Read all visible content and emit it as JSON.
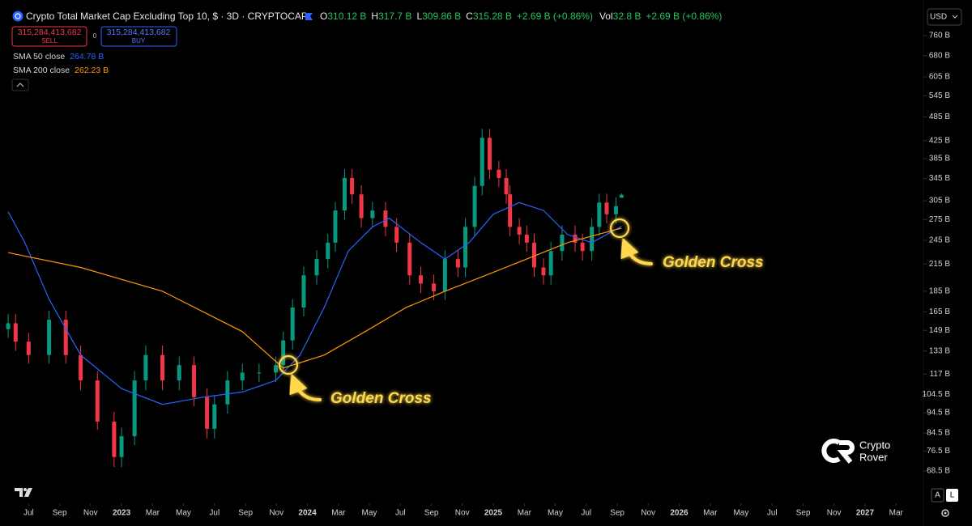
{
  "header": {
    "title": "Crypto Total Market Cap Excluding Top 10, $ · 3D · CRYPTOCAP",
    "ohlc": [
      {
        "key": "O",
        "value": "310.12 B"
      },
      {
        "key": "H",
        "value": "317.7 B"
      },
      {
        "key": "L",
        "value": "309.86 B"
      },
      {
        "key": "C",
        "value": "315.28 B"
      }
    ],
    "change": "+2.69 B (+0.86%)",
    "vol_key": "Vol",
    "vol": "32.8 B",
    "vol_change": "+2.69 B (+0.86%)"
  },
  "trade": {
    "sell_price": "315,284,413,682",
    "sell": "SELL",
    "spread": "0",
    "buy_price": "315,284,413,682",
    "buy": "BUY"
  },
  "currency": "USD",
  "scale_buttons": [
    "A",
    "L"
  ],
  "watermark": [
    "Crypto",
    "Rover"
  ],
  "chart_data": {
    "type": "candlestick",
    "log_scale": true,
    "up_color": "#089981",
    "down_color": "#f23645",
    "x": [
      2022.39,
      2022.43,
      2022.5,
      2022.61,
      2022.7,
      2022.78,
      2022.87,
      2022.96,
      2023.0,
      2023.07,
      2023.13,
      2023.22,
      2023.31,
      2023.39,
      2023.46,
      2023.5,
      2023.57,
      2023.65,
      2023.74,
      2023.83,
      2023.87,
      2023.92,
      2023.98,
      2024.05,
      2024.11,
      2024.15,
      2024.2,
      2024.24,
      2024.29,
      2024.35,
      2024.42,
      2024.48,
      2024.55,
      2024.61,
      2024.68,
      2024.74,
      2024.81,
      2024.85,
      2024.9,
      2024.94,
      2024.98,
      2025.03,
      2025.07,
      2025.09,
      2025.14,
      2025.18,
      2025.22,
      2025.27,
      2025.31,
      2025.37,
      2025.44,
      2025.48,
      2025.53,
      2025.57,
      2025.61,
      2025.66,
      2025.69
    ],
    "open": [
      150,
      155,
      140,
      130,
      158,
      130,
      113,
      90,
      74,
      83,
      113,
      130,
      113,
      123,
      103,
      86.5,
      99,
      113,
      118,
      118,
      123,
      141,
      169,
      202,
      221,
      242,
      289,
      346,
      316,
      277,
      289,
      264,
      242,
      202,
      193,
      185,
      221,
      211,
      264,
      331,
      432,
      362,
      346,
      316,
      264,
      253,
      242,
      211,
      202,
      231,
      253,
      242,
      231,
      264,
      302,
      283,
      310.12
    ],
    "high": [
      163,
      163,
      147,
      166,
      166,
      137,
      119,
      95,
      87,
      119,
      137,
      137,
      129,
      129,
      108,
      104,
      119,
      124,
      124,
      129,
      148,
      177,
      212,
      232,
      254,
      303,
      363,
      363,
      332,
      303,
      303,
      277,
      254,
      212,
      203,
      232,
      232,
      277,
      348,
      454,
      454,
      380,
      363,
      332,
      277,
      266,
      254,
      222,
      243,
      266,
      266,
      254,
      277,
      317,
      317,
      311,
      317.7
    ],
    "low": [
      143,
      133,
      124,
      124,
      124,
      107,
      86,
      70,
      70,
      79,
      107,
      107,
      107,
      98,
      82,
      82,
      94,
      107,
      112,
      112,
      117,
      134,
      161,
      192,
      210,
      230,
      275,
      300,
      263,
      263,
      251,
      230,
      192,
      183,
      176,
      176,
      200,
      200,
      251,
      314,
      344,
      329,
      300,
      251,
      240,
      230,
      200,
      192,
      192,
      219,
      230,
      219,
      219,
      251,
      269,
      269,
      309.86
    ],
    "close": [
      155,
      140,
      130,
      158,
      130,
      113,
      90,
      74,
      83,
      113,
      130,
      113,
      123,
      103,
      86.5,
      99,
      113,
      118,
      118,
      123,
      141,
      169,
      202,
      221,
      242,
      289,
      346,
      316,
      277,
      289,
      264,
      242,
      202,
      193,
      185,
      221,
      211,
      264,
      331,
      432,
      362,
      346,
      316,
      264,
      253,
      242,
      211,
      202,
      231,
      253,
      242,
      231,
      264,
      302,
      283,
      296,
      315.28
    ],
    "series": [
      {
        "name": "SMA 50 close",
        "legend_value": "264.78 B",
        "color": "#2962ff",
        "x": [
          2022.39,
          2022.48,
          2022.61,
          2022.78,
          2023.0,
          2023.22,
          2023.44,
          2023.65,
          2023.83,
          2023.96,
          2024.09,
          2024.22,
          2024.35,
          2024.44,
          2024.61,
          2024.74,
          2024.87,
          2025.0,
          2025.14,
          2025.27,
          2025.4,
          2025.53,
          2025.69
        ],
        "values": [
          287,
          242,
          177,
          130,
          108,
          99,
          103,
          106,
          113,
          130,
          169,
          231,
          264,
          277,
          242,
          221,
          242,
          283,
          302,
          289,
          253,
          242,
          264.78
        ]
      },
      {
        "name": "SMA 200 close",
        "legend_value": "262.23 B",
        "color": "#ff9800",
        "x": [
          2022.39,
          2022.78,
          2023.22,
          2023.65,
          2023.87,
          2024.09,
          2024.31,
          2024.53,
          2024.74,
          2024.96,
          2025.18,
          2025.4,
          2025.69
        ],
        "values": [
          229,
          211,
          185,
          148,
          121,
          130,
          148,
          169,
          185,
          202,
          221,
          242,
          262.23
        ]
      }
    ],
    "annotations": [
      "Golden Cross",
      "Golden Cross"
    ],
    "xlim": [
      2022.346,
      2027.314
    ],
    "ylim": [
      57.8,
      925
    ],
    "xticks": [
      {
        "value": 2022.5,
        "label": "Jul"
      },
      {
        "value": 2022.667,
        "label": "Sep"
      },
      {
        "value": 2022.833,
        "label": "Nov"
      },
      {
        "value": 2023.0,
        "label": "2023"
      },
      {
        "value": 2023.167,
        "label": "Mar"
      },
      {
        "value": 2023.333,
        "label": "May"
      },
      {
        "value": 2023.5,
        "label": "Jul"
      },
      {
        "value": 2023.667,
        "label": "Sep"
      },
      {
        "value": 2023.833,
        "label": "Nov"
      },
      {
        "value": 2024.0,
        "label": "2024"
      },
      {
        "value": 2024.167,
        "label": "Mar"
      },
      {
        "value": 2024.333,
        "label": "May"
      },
      {
        "value": 2024.5,
        "label": "Jul"
      },
      {
        "value": 2024.667,
        "label": "Sep"
      },
      {
        "value": 2024.833,
        "label": "Nov"
      },
      {
        "value": 2025.0,
        "label": "2025"
      },
      {
        "value": 2025.167,
        "label": "Mar"
      },
      {
        "value": 2025.333,
        "label": "May"
      },
      {
        "value": 2025.5,
        "label": "Jul"
      },
      {
        "value": 2025.667,
        "label": "Sep"
      },
      {
        "value": 2025.833,
        "label": "Nov"
      },
      {
        "value": 2026.0,
        "label": "2026"
      },
      {
        "value": 2026.167,
        "label": "Mar"
      },
      {
        "value": 2026.333,
        "label": "May"
      },
      {
        "value": 2026.5,
        "label": "Jul"
      },
      {
        "value": 2026.667,
        "label": "Sep"
      },
      {
        "value": 2026.833,
        "label": "Nov"
      },
      {
        "value": 2027.0,
        "label": "2027"
      },
      {
        "value": 2027.167,
        "label": "Mar"
      }
    ],
    "yticks": [
      {
        "value": 760,
        "label": "760 B"
      },
      {
        "value": 680,
        "label": "680 B"
      },
      {
        "value": 605,
        "label": "605 B"
      },
      {
        "value": 545,
        "label": "545 B"
      },
      {
        "value": 485,
        "label": "485 B"
      },
      {
        "value": 425,
        "label": "425 B"
      },
      {
        "value": 385,
        "label": "385 B"
      },
      {
        "value": 345,
        "label": "345 B"
      },
      {
        "value": 305,
        "label": "305 B"
      },
      {
        "value": 275,
        "label": "275 B"
      },
      {
        "value": 245,
        "label": "245 B"
      },
      {
        "value": 215,
        "label": "215 B"
      },
      {
        "value": 185,
        "label": "185 B"
      },
      {
        "value": 165,
        "label": "165 B"
      },
      {
        "value": 149,
        "label": "149 B"
      },
      {
        "value": 133,
        "label": "133 B"
      },
      {
        "value": 117,
        "label": "117 B"
      },
      {
        "value": 104.5,
        "label": "104.5 B"
      },
      {
        "value": 94.5,
        "label": "94.5 B"
      },
      {
        "value": 84.5,
        "label": "84.5 B"
      },
      {
        "value": 76.5,
        "label": "76.5 B"
      },
      {
        "value": 68.5,
        "label": "68.5 B"
      }
    ]
  }
}
